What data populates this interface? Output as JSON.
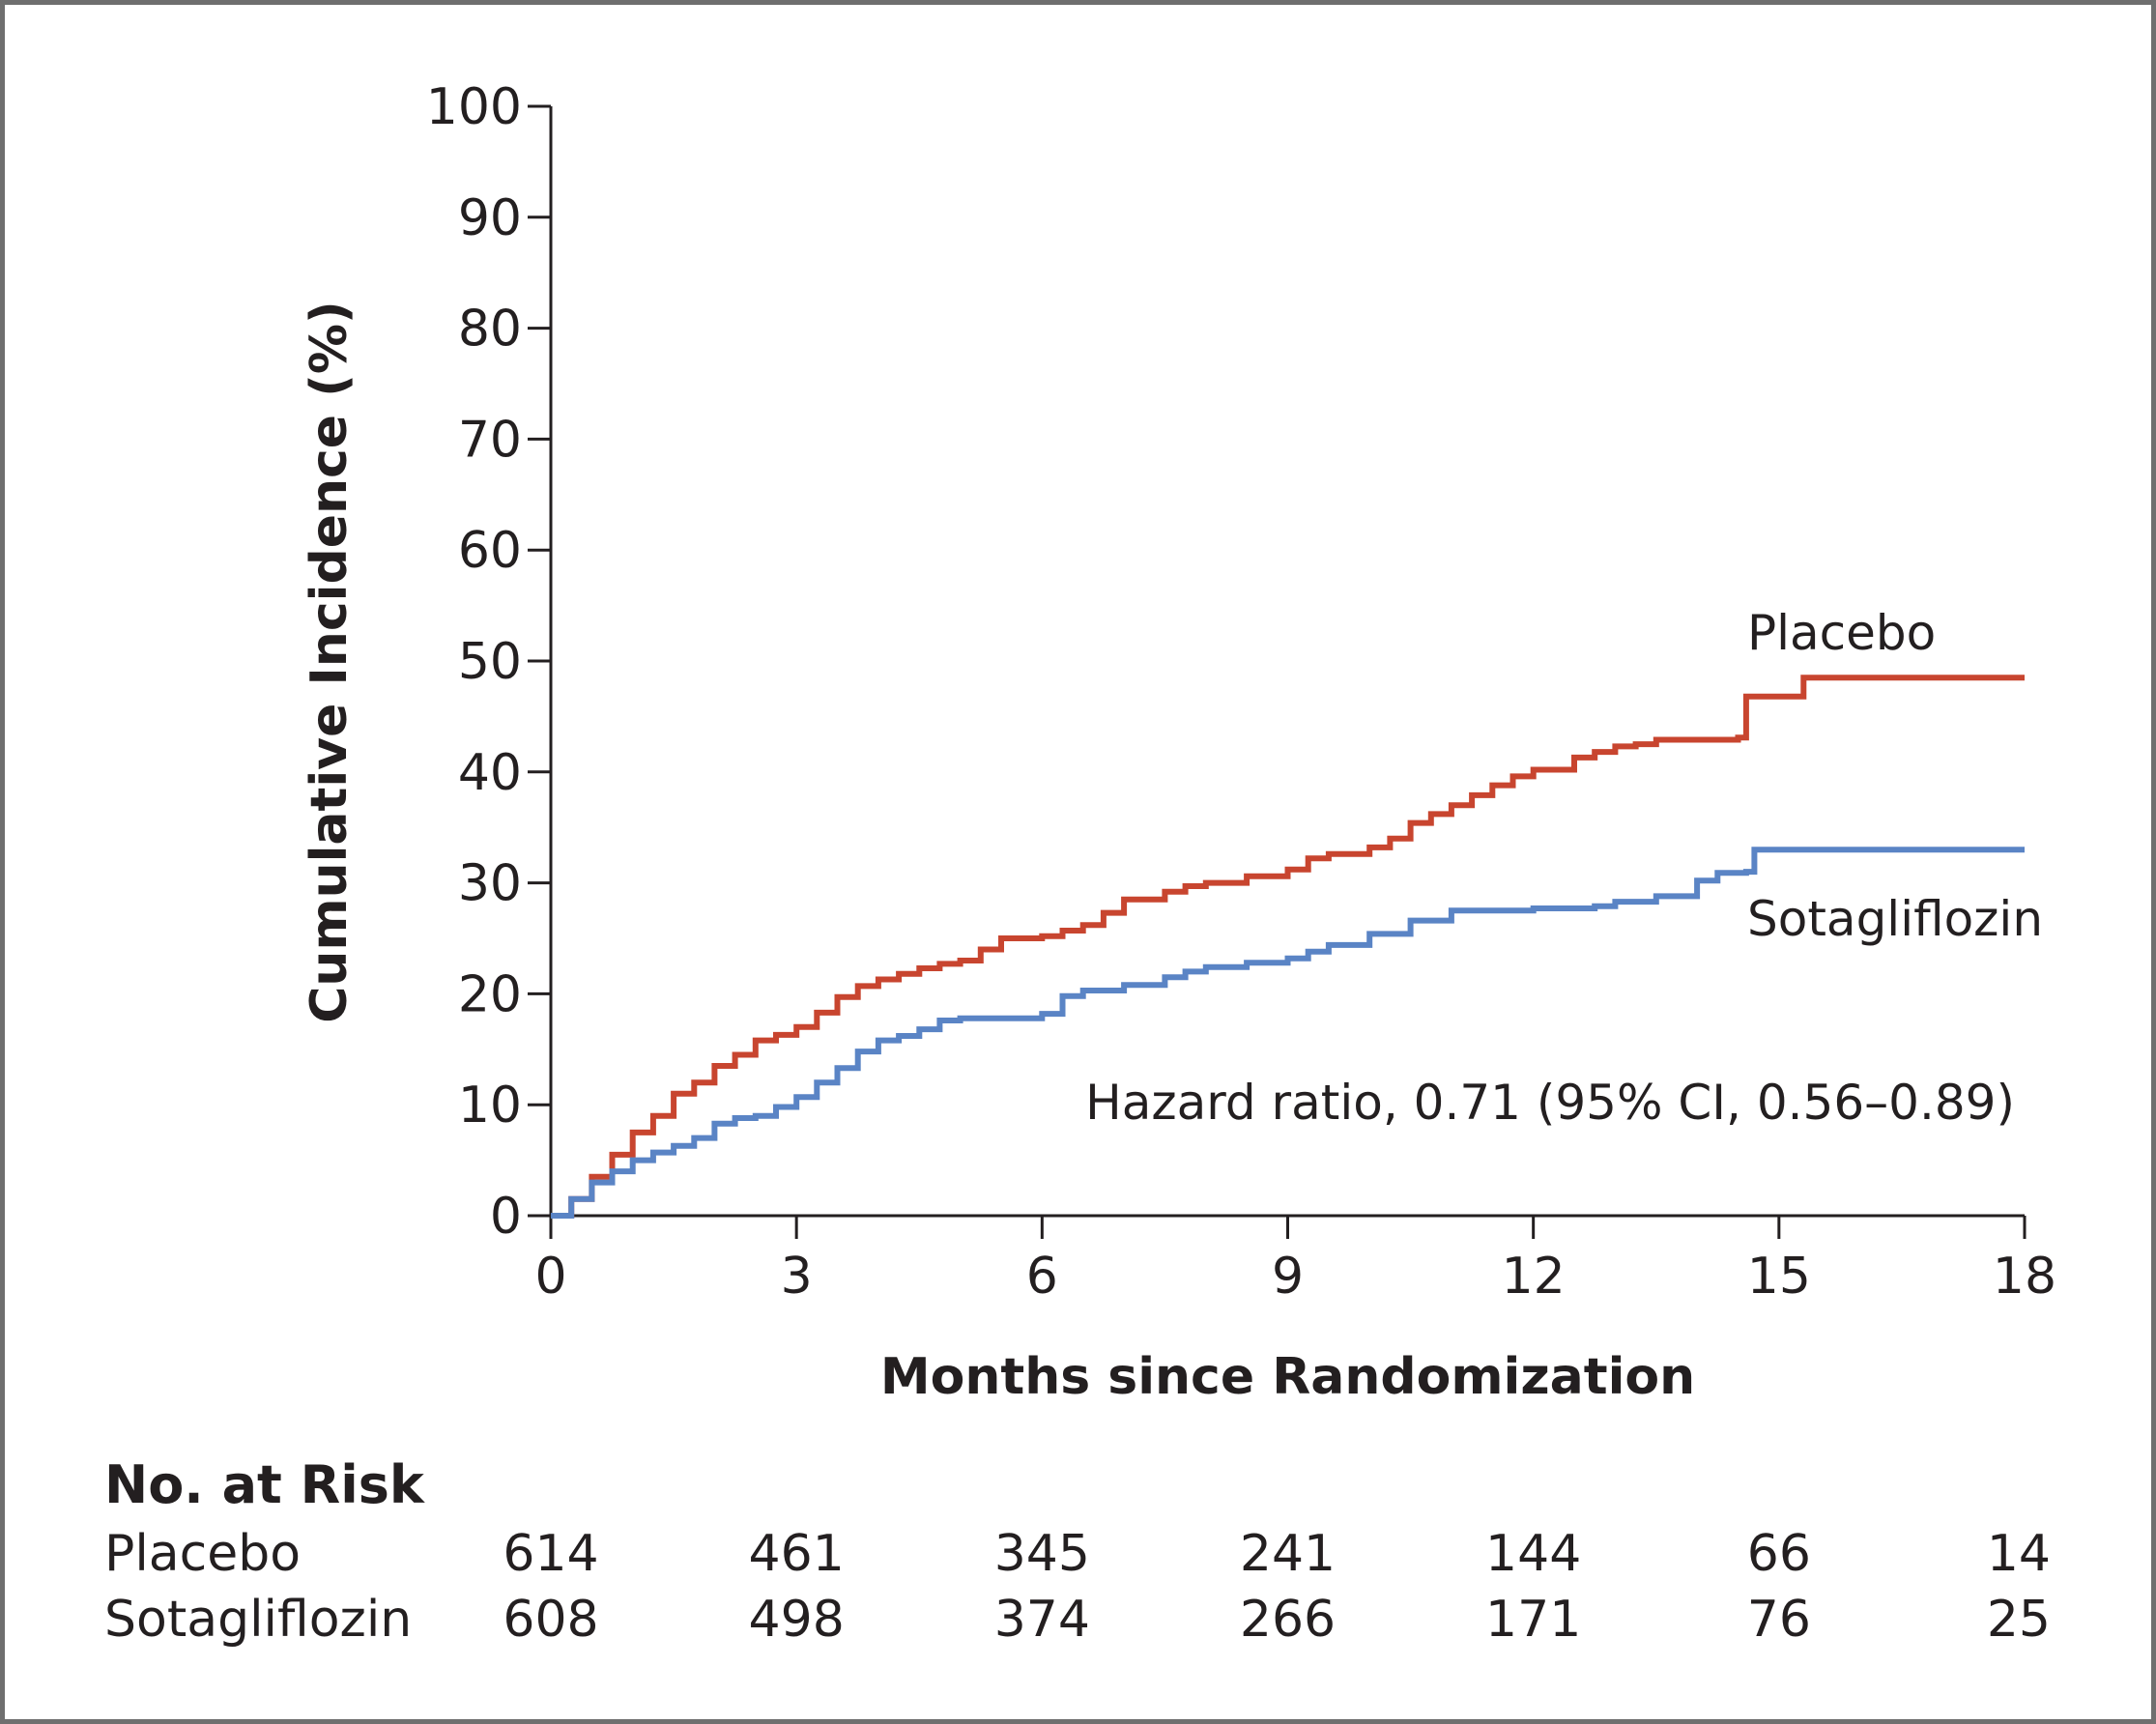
{
  "chart_data": {
    "type": "line",
    "subtype": "kaplan-meier-step",
    "xlabel": "Months since Randomization",
    "ylabel": "Cumulative Incidence (%)",
    "xlim": [
      0,
      18
    ],
    "ylim": [
      0,
      100
    ],
    "x_ticks": [
      0,
      3,
      6,
      9,
      12,
      15,
      18
    ],
    "y_ticks": [
      0,
      10,
      20,
      30,
      40,
      50,
      60,
      70,
      80,
      90,
      100
    ],
    "grid": false,
    "series": [
      {
        "name": "Placebo",
        "color": "#c8452f",
        "points": [
          [
            0,
            0
          ],
          [
            0.25,
            1.5
          ],
          [
            0.5,
            3.5
          ],
          [
            0.75,
            5.5
          ],
          [
            1.0,
            7.5
          ],
          [
            1.25,
            9
          ],
          [
            1.5,
            11
          ],
          [
            1.75,
            12
          ],
          [
            2.0,
            13.5
          ],
          [
            2.25,
            14.5
          ],
          [
            2.5,
            15.8
          ],
          [
            2.75,
            16.3
          ],
          [
            3.0,
            17
          ],
          [
            3.25,
            18.3
          ],
          [
            3.5,
            19.7
          ],
          [
            3.75,
            20.7
          ],
          [
            4.0,
            21.3
          ],
          [
            4.25,
            21.8
          ],
          [
            4.5,
            22.3
          ],
          [
            4.75,
            22.7
          ],
          [
            5.0,
            23
          ],
          [
            5.25,
            24
          ],
          [
            5.5,
            25
          ],
          [
            6.0,
            25.2
          ],
          [
            6.25,
            25.7
          ],
          [
            6.5,
            26.2
          ],
          [
            6.75,
            27.3
          ],
          [
            7.0,
            28.5
          ],
          [
            7.5,
            29.2
          ],
          [
            7.75,
            29.7
          ],
          [
            8.0,
            30
          ],
          [
            8.5,
            30.6
          ],
          [
            9.0,
            31.2
          ],
          [
            9.25,
            32.2
          ],
          [
            9.5,
            32.6
          ],
          [
            10.0,
            33.2
          ],
          [
            10.25,
            34
          ],
          [
            10.5,
            35.4
          ],
          [
            10.75,
            36.2
          ],
          [
            11.0,
            37
          ],
          [
            11.25,
            37.9
          ],
          [
            11.5,
            38.8
          ],
          [
            11.75,
            39.6
          ],
          [
            12.0,
            40.2
          ],
          [
            12.5,
            41.3
          ],
          [
            12.75,
            41.8
          ],
          [
            13.0,
            42.3
          ],
          [
            13.25,
            42.5
          ],
          [
            13.5,
            42.9
          ],
          [
            14.5,
            43.1
          ],
          [
            14.6,
            46.8
          ],
          [
            15.3,
            48.5
          ],
          [
            18.0,
            48.5
          ]
        ]
      },
      {
        "name": "Sotagliflozin",
        "color": "#5a84c5",
        "points": [
          [
            0,
            0
          ],
          [
            0.25,
            1.5
          ],
          [
            0.5,
            3
          ],
          [
            0.75,
            4
          ],
          [
            1.0,
            5
          ],
          [
            1.25,
            5.7
          ],
          [
            1.5,
            6.3
          ],
          [
            1.75,
            7
          ],
          [
            2.0,
            8.3
          ],
          [
            2.25,
            8.8
          ],
          [
            2.5,
            9.0
          ],
          [
            2.75,
            9.8
          ],
          [
            3.0,
            10.7
          ],
          [
            3.25,
            12
          ],
          [
            3.5,
            13.3
          ],
          [
            3.75,
            14.8
          ],
          [
            4.0,
            15.8
          ],
          [
            4.25,
            16.2
          ],
          [
            4.5,
            16.8
          ],
          [
            4.75,
            17.6
          ],
          [
            5.0,
            17.8
          ],
          [
            5.5,
            17.8
          ],
          [
            6.0,
            18.2
          ],
          [
            6.25,
            19.8
          ],
          [
            6.5,
            20.3
          ],
          [
            7.0,
            20.8
          ],
          [
            7.5,
            21.5
          ],
          [
            7.75,
            22
          ],
          [
            8.0,
            22.4
          ],
          [
            8.5,
            22.8
          ],
          [
            9.0,
            23.2
          ],
          [
            9.25,
            23.8
          ],
          [
            9.5,
            24.4
          ],
          [
            10.0,
            25.4
          ],
          [
            10.5,
            26.6
          ],
          [
            11.0,
            27.5
          ],
          [
            12.0,
            27.7
          ],
          [
            12.75,
            27.9
          ],
          [
            13.0,
            28.3
          ],
          [
            13.5,
            28.8
          ],
          [
            14.0,
            30.2
          ],
          [
            14.25,
            30.9
          ],
          [
            14.6,
            31.0
          ],
          [
            14.7,
            33.0
          ],
          [
            18.0,
            33.0
          ]
        ]
      }
    ],
    "series_labels": [
      "Placebo",
      "Sotagliflozin"
    ],
    "annotation": "Hazard ratio, 0.71 (95% CI, 0.56–0.89)",
    "risk_table": {
      "heading": "No. at Risk",
      "rows": [
        {
          "label": "Placebo",
          "values": [
            "614",
            "461",
            "345",
            "241",
            "144",
            "66",
            "14"
          ]
        },
        {
          "label": "Sotagliflozin",
          "values": [
            "608",
            "498",
            "374",
            "266",
            "171",
            "76",
            "25"
          ]
        }
      ]
    }
  }
}
